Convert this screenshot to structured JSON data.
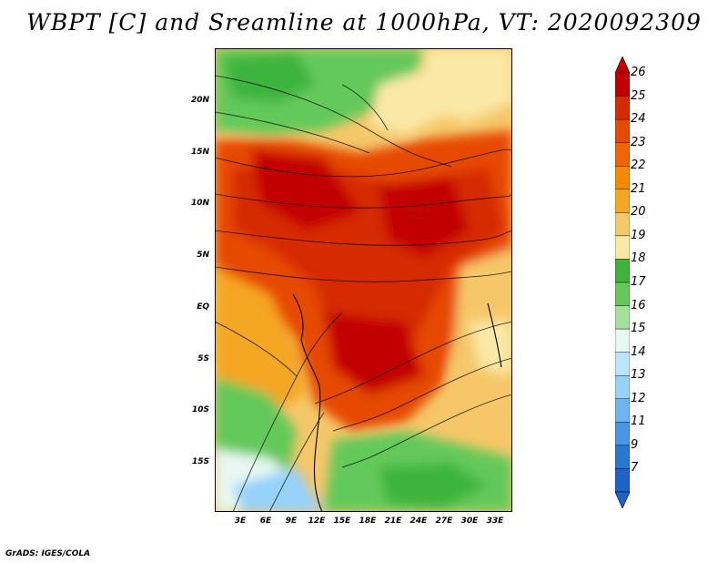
{
  "title": "WBPT [C] and Sreamline at 1000hPa, VT: 2020092309",
  "credit": "GrADS: IGES/COLA",
  "map": {
    "variable": "WBPT [C]",
    "level": "1000hPa",
    "valid_time": "2020092309",
    "lat_labels": [
      "20N",
      "15N",
      "10N",
      "5N",
      "EQ",
      "5S",
      "10S",
      "15S"
    ],
    "lon_labels": [
      "3E",
      "6E",
      "9E",
      "12E",
      "15E",
      "18E",
      "21E",
      "24E",
      "27E",
      "30E",
      "33E"
    ]
  },
  "colorbar": {
    "labels": [
      "26",
      "25",
      "24",
      "23",
      "22",
      "21",
      "20",
      "19",
      "18",
      "17",
      "16",
      "15",
      "14",
      "13",
      "12",
      "11",
      "9",
      "7"
    ],
    "colors": [
      "#c30000",
      "#d62a00",
      "#e64a00",
      "#f26400",
      "#f58a00",
      "#f5a623",
      "#f5c769",
      "#fae8a6",
      "#3cb43c",
      "#63c95a",
      "#a3e09b",
      "#e7f8f2",
      "#bce3ff",
      "#96d2fa",
      "#6eb4f0",
      "#4a96e6",
      "#2878d2",
      "#1e64c8"
    ]
  }
}
